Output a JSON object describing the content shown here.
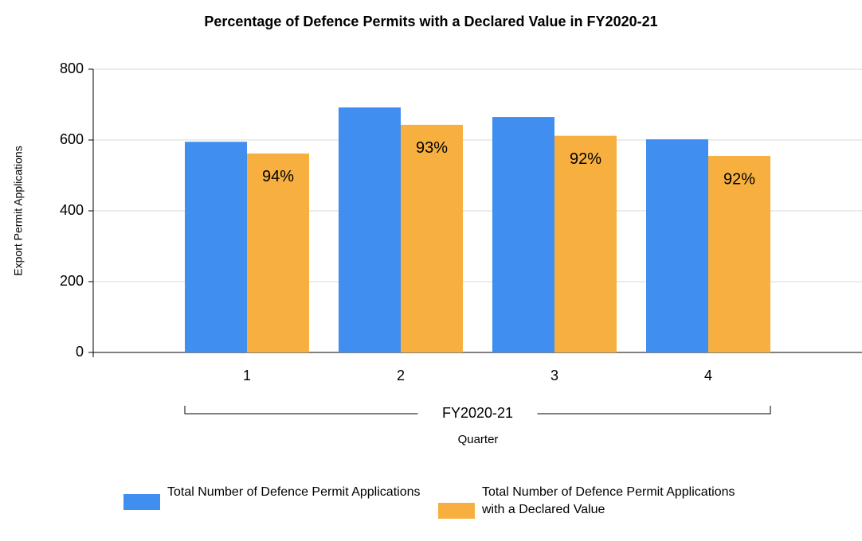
{
  "chart_data": {
    "type": "bar",
    "title": "Percentage of Defence Permits with a Declared Value in FY2020-21",
    "y_label": "Export Permit Applications",
    "x_label": "Quarter",
    "group_label": "FY2020-21",
    "categories": [
      "1",
      "2",
      "3",
      "4"
    ],
    "series": [
      {
        "name": "Total Number of Defence Permit Applications",
        "color": "#3f8ef0",
        "values": [
          595,
          692,
          665,
          602
        ]
      },
      {
        "name": "Total Number of Defence Permit Applications with a Declared Value",
        "color": "#f7b03f",
        "values": [
          562,
          643,
          612,
          555
        ]
      }
    ],
    "annotations": [
      "94%",
      "93%",
      "92%",
      "92%"
    ],
    "ylim": [
      0,
      800
    ],
    "yticks": [
      0,
      200,
      400,
      600,
      800
    ],
    "grid": true,
    "legend": "bottom"
  }
}
